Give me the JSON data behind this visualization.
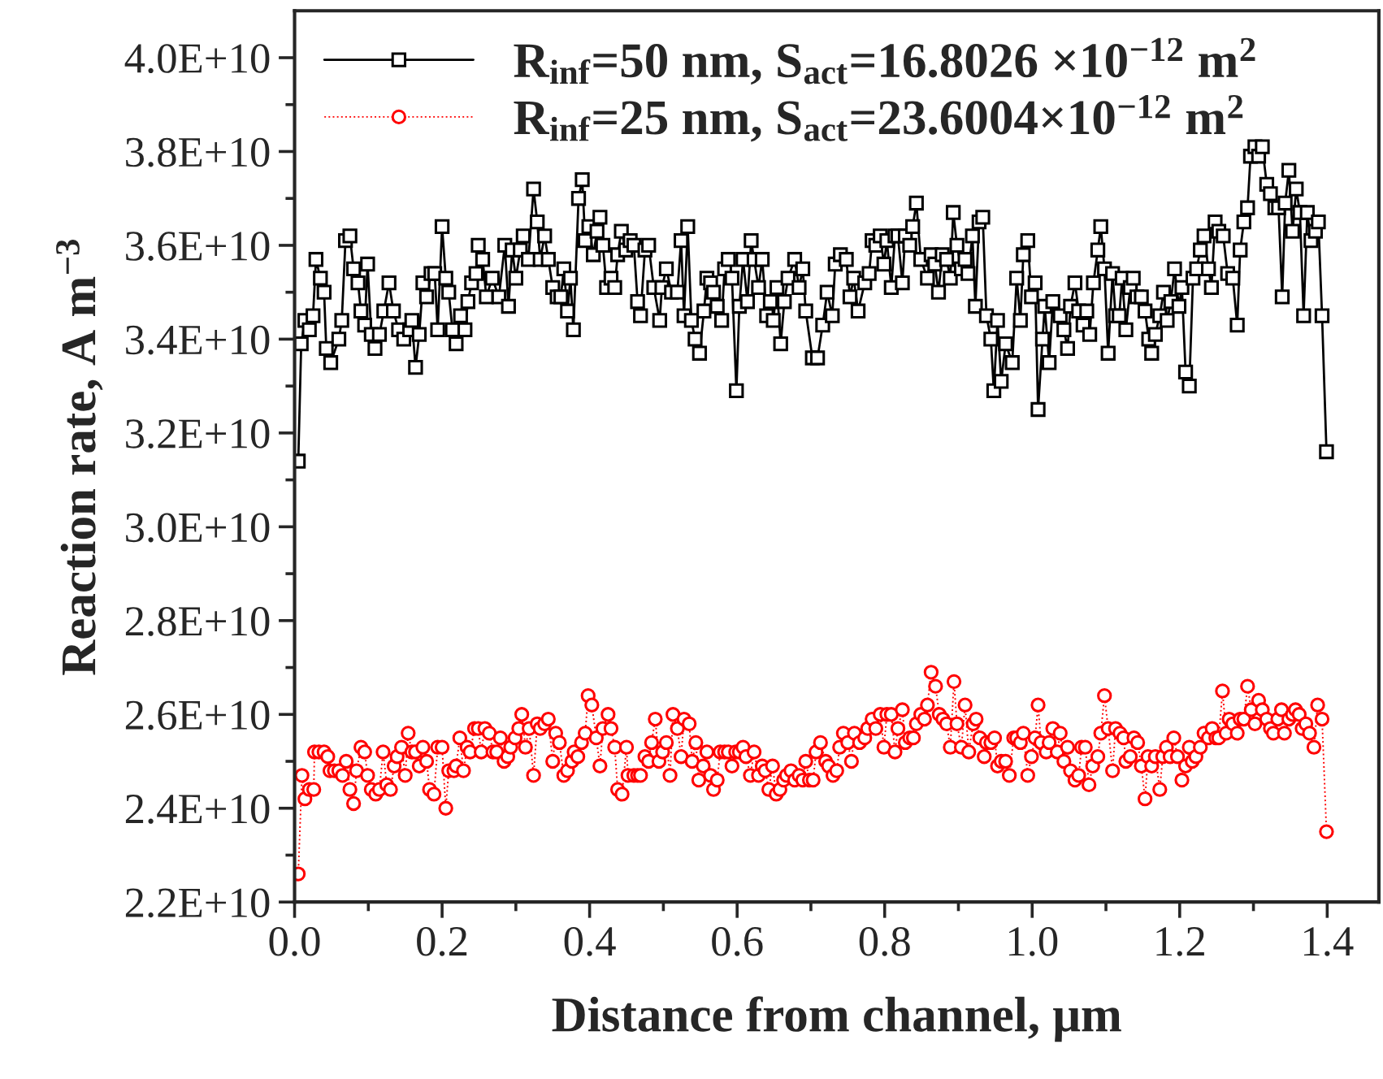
{
  "chart_data": {
    "type": "line",
    "xlabel": "Distance from channel, μm",
    "ylabel": "Reaction rate, A m$^{−3}$",
    "xlim": [
      0,
      1.47
    ],
    "ylim": [
      22000000000.0,
      41000000000.0
    ],
    "xticks": [
      {
        "value": 0,
        "label": "0.0"
      },
      {
        "value": 0.1,
        "label": null
      },
      {
        "value": 0.2,
        "label": "0.2"
      },
      {
        "value": 0.3,
        "label": null
      },
      {
        "value": 0.4,
        "label": "0.4"
      },
      {
        "value": 0.5,
        "label": null
      },
      {
        "value": 0.6,
        "label": "0.6"
      },
      {
        "value": 0.7,
        "label": null
      },
      {
        "value": 0.8,
        "label": "0.8"
      },
      {
        "value": 0.9,
        "label": null
      },
      {
        "value": 1.0,
        "label": "1.0"
      },
      {
        "value": 1.1,
        "label": null
      },
      {
        "value": 1.2,
        "label": "1.2"
      },
      {
        "value": 1.3,
        "label": null
      },
      {
        "value": 1.4,
        "label": "1.4"
      }
    ],
    "yticks": [
      {
        "value": 22000000000.0,
        "label": "2.2E+10"
      },
      {
        "value": 23000000000.0,
        "label": null
      },
      {
        "value": 24000000000.0,
        "label": "2.4E+10"
      },
      {
        "value": 25000000000.0,
        "label": null
      },
      {
        "value": 26000000000.0,
        "label": "2.6E+10"
      },
      {
        "value": 27000000000.0,
        "label": null
      },
      {
        "value": 28000000000.0,
        "label": "2.8E+10"
      },
      {
        "value": 29000000000.0,
        "label": null
      },
      {
        "value": 30000000000.0,
        "label": "3.0E+10"
      },
      {
        "value": 31000000000.0,
        "label": null
      },
      {
        "value": 32000000000.0,
        "label": "3.2E+10"
      },
      {
        "value": 33000000000.0,
        "label": null
      },
      {
        "value": 34000000000.0,
        "label": "3.4E+10"
      },
      {
        "value": 35000000000.0,
        "label": null
      },
      {
        "value": 36000000000.0,
        "label": "3.6E+10"
      },
      {
        "value": 37000000000.0,
        "label": null
      },
      {
        "value": 38000000000.0,
        "label": "3.8E+10"
      },
      {
        "value": 39000000000.0,
        "label": null
      },
      {
        "value": 40000000000.0,
        "label": "4.0E+10"
      }
    ],
    "grid": false,
    "legend": "top left",
    "series": [
      {
        "name": "R$_{inf}$=50 nm, S$_{act}$=16.8026 ×10$^{−12}$ m$^{2}$",
        "color": "#000000",
        "marker": "square",
        "line_style": "solid",
        "x": [
          0.005,
          0.009,
          0.014,
          0.02,
          0.025,
          0.029,
          0.035,
          0.04,
          0.043,
          0.049,
          0.06,
          0.064,
          0.069,
          0.075,
          0.08,
          0.086,
          0.09,
          0.095,
          0.099,
          0.104,
          0.109,
          0.115,
          0.121,
          0.128,
          0.134,
          0.141,
          0.148,
          0.156,
          0.159,
          0.164,
          0.169,
          0.174,
          0.179,
          0.185,
          0.19,
          0.194,
          0.2,
          0.205,
          0.209,
          0.214,
          0.219,
          0.225,
          0.231,
          0.235,
          0.24,
          0.246,
          0.249,
          0.255,
          0.26,
          0.268,
          0.277,
          0.285,
          0.29,
          0.295,
          0.3,
          0.306,
          0.31,
          0.317,
          0.324,
          0.329,
          0.333,
          0.339,
          0.344,
          0.35,
          0.356,
          0.361,
          0.365,
          0.37,
          0.374,
          0.378,
          0.385,
          0.39,
          0.394,
          0.399,
          0.405,
          0.41,
          0.414,
          0.418,
          0.423,
          0.429,
          0.434,
          0.438,
          0.443,
          0.449,
          0.455,
          0.46,
          0.465,
          0.469,
          0.475,
          0.48,
          0.487,
          0.495,
          0.498,
          0.504,
          0.511,
          0.519,
          0.524,
          0.528,
          0.533,
          0.538,
          0.543,
          0.549,
          0.555,
          0.559,
          0.564,
          0.568,
          0.573,
          0.579,
          0.583,
          0.588,
          0.593,
          0.599,
          0.603,
          0.608,
          0.614,
          0.619,
          0.623,
          0.629,
          0.634,
          0.64,
          0.645,
          0.649,
          0.654,
          0.659,
          0.664,
          0.669,
          0.678,
          0.684,
          0.689,
          0.693,
          0.702,
          0.709,
          0.716,
          0.722,
          0.729,
          0.733,
          0.74,
          0.748,
          0.753,
          0.758,
          0.764,
          0.773,
          0.779,
          0.783,
          0.788,
          0.794,
          0.799,
          0.803,
          0.809,
          0.814,
          0.818,
          0.824,
          0.828,
          0.834,
          0.838,
          0.843,
          0.849,
          0.858,
          0.863,
          0.868,
          0.873,
          0.878,
          0.884,
          0.889,
          0.893,
          0.898,
          0.904,
          0.909,
          0.913,
          0.919,
          0.923,
          0.928,
          0.933,
          0.938,
          0.944,
          0.948,
          0.953,
          0.958,
          0.964,
          0.973,
          0.979,
          0.984,
          0.988,
          0.994,
          0.999,
          1.004,
          1.008,
          1.014,
          1.017,
          1.023,
          1.028,
          1.038,
          1.043,
          1.048,
          1.052,
          1.058,
          1.063,
          1.069,
          1.074,
          1.078,
          1.083,
          1.089,
          1.093,
          1.098,
          1.103,
          1.109,
          1.113,
          1.118,
          1.122,
          1.127,
          1.133,
          1.137,
          1.142,
          1.148,
          1.153,
          1.158,
          1.162,
          1.167,
          1.173,
          1.178,
          1.183,
          1.188,
          1.193,
          1.199,
          1.203,
          1.208,
          1.213,
          1.218,
          1.223,
          1.228,
          1.233,
          1.239,
          1.243,
          1.248,
          1.253,
          1.259,
          1.265,
          1.272,
          1.278,
          1.282,
          1.287,
          1.292,
          1.296,
          1.302,
          1.307,
          1.312,
          1.318,
          1.323,
          1.329,
          1.334,
          1.339,
          1.343,
          1.348,
          1.353,
          1.358,
          1.363,
          1.368,
          1.373,
          1.378,
          1.384,
          1.388,
          1.393,
          1.399
        ],
        "values": [
          31400000000.0,
          33900000000.0,
          34400000000.0,
          34200000000.0,
          34500000000.0,
          35700000000.0,
          35300000000.0,
          35000000000.0,
          33800000000.0,
          33500000000.0,
          34000000000.0,
          34400000000.0,
          36100000000.0,
          36200000000.0,
          35500000000.0,
          35200000000.0,
          34600000000.0,
          34300000000.0,
          35600000000.0,
          34100000000.0,
          33800000000.0,
          34100000000.0,
          34600000000.0,
          35200000000.0,
          34600000000.0,
          34200000000.0,
          34000000000.0,
          34200000000.0,
          34400000000.0,
          33400000000.0,
          34100000000.0,
          35200000000.0,
          34900000000.0,
          35400000000.0,
          35400000000.0,
          34200000000.0,
          36400000000.0,
          35300000000.0,
          35000000000.0,
          34200000000.0,
          33900000000.0,
          34500000000.0,
          34200000000.0,
          34800000000.0,
          35200000000.0,
          35400000000.0,
          36000000000.0,
          35700000000.0,
          34900000000.0,
          35300000000.0,
          34900000000.0,
          36000000000.0,
          34700000000.0,
          35900000000.0,
          35300000000.0,
          35900000000.0,
          36200000000.0,
          35700000000.0,
          37200000000.0,
          36500000000.0,
          35700000000.0,
          36200000000.0,
          35700000000.0,
          35100000000.0,
          34900000000.0,
          34900000000.0,
          35500000000.0,
          34600000000.0,
          35300000000.0,
          34200000000.0,
          37000000000.0,
          37400000000.0,
          36100000000.0,
          36400000000.0,
          35800000000.0,
          36300000000.0,
          36600000000.0,
          36000000000.0,
          35100000000.0,
          35300000000.0,
          35100000000.0,
          35800000000.0,
          36300000000.0,
          35900000000.0,
          36100000000.0,
          36000000000.0,
          34800000000.0,
          34500000000.0,
          35900000000.0,
          36000000000.0,
          35100000000.0,
          34400000000.0,
          35100000000.0,
          35500000000.0,
          35000000000.0,
          35000000000.0,
          36100000000.0,
          34500000000.0,
          36400000000.0,
          34400000000.0,
          34000000000.0,
          33700000000.0,
          34600000000.0,
          35300000000.0,
          35200000000.0,
          35000000000.0,
          34700000000.0,
          34400000000.0,
          35500000000.0,
          35700000000.0,
          35300000000.0,
          32900000000.0,
          34700000000.0,
          35700000000.0,
          34800000000.0,
          36100000000.0,
          35700000000.0,
          35100000000.0,
          35700000000.0,
          34500000000.0,
          34800000000.0,
          34400000000.0,
          35100000000.0,
          33900000000.0,
          34800000000.0,
          35300000000.0,
          35700000000.0,
          35100000000.0,
          35500000000.0,
          34600000000.0,
          33600000000.0,
          33600000000.0,
          34300000000.0,
          35000000000.0,
          34500000000.0,
          35600000000.0,
          35800000000.0,
          35700000000.0,
          34900000000.0,
          35300000000.0,
          34600000000.0,
          35200000000.0,
          35400000000.0,
          36100000000.0,
          36000000000.0,
          36200000000.0,
          35600000000.0,
          36100000000.0,
          35100000000.0,
          36200000000.0,
          36200000000.0,
          35200000000.0,
          36200000000.0,
          36000000000.0,
          36400000000.0,
          36900000000.0,
          35700000000.0,
          35300000000.0,
          35800000000.0,
          35600000000.0,
          35000000000.0,
          35800000000.0,
          35700000000.0,
          35300000000.0,
          36700000000.0,
          36000000000.0,
          35500000000.0,
          35700000000.0,
          35400000000.0,
          36200000000.0,
          34700000000.0,
          36500000000.0,
          36600000000.0,
          34500000000.0,
          34000000000.0,
          32900000000.0,
          34400000000.0,
          33100000000.0,
          33900000000.0,
          33500000000.0,
          35300000000.0,
          34400000000.0,
          35800000000.0,
          36100000000.0,
          34900000000.0,
          35200000000.0,
          32500000000.0,
          34000000000.0,
          34700000000.0,
          33500000000.0,
          34800000000.0,
          34500000000.0,
          34200000000.0,
          33800000000.0,
          34700000000.0,
          35200000000.0,
          34600000000.0,
          34300000000.0,
          34600000000.0,
          34100000000.0,
          35200000000.0,
          35900000000.0,
          36400000000.0,
          35500000000.0,
          33700000000.0,
          35400000000.0,
          34500000000.0,
          34500000000.0,
          35300000000.0,
          34200000000.0,
          35100000000.0,
          35300000000.0,
          34900000000.0,
          34900000000.0,
          34600000000.0,
          34000000000.0,
          33700000000.0,
          34100000000.0,
          34500000000.0,
          35000000000.0,
          34400000000.0,
          34800000000.0,
          35500000000.0,
          34700000000.0,
          35100000000.0,
          33300000000.0,
          33000000000.0,
          35300000000.0,
          35500000000.0,
          35900000000.0,
          36200000000.0,
          35500000000.0,
          35100000000.0,
          36500000000.0,
          36300000000.0,
          36200000000.0,
          35400000000.0,
          35300000000.0,
          34300000000.0,
          35900000000.0,
          36500000000.0,
          36800000000.0,
          37900000000.0,
          38100000000.0,
          37900000000.0,
          38100000000.0,
          37300000000.0,
          37100000000.0,
          36800000000.0,
          36800000000.0,
          34900000000.0,
          36900000000.0,
          37600000000.0,
          36300000000.0,
          37200000000.0,
          36700000000.0,
          34500000000.0,
          36700000000.0,
          36100000000.0,
          36300000000.0,
          36500000000.0,
          34500000000.0,
          31600000000.0
        ]
      },
      {
        "name": "R$_{inf}$=25 nm, S$_{act}$=23.6004×10$^{−12}$ m$^{2}$",
        "color": "#ff0000",
        "marker": "circle",
        "line_style": "dotted",
        "x": [
          0.005,
          0.01,
          0.014,
          0.02,
          0.026,
          0.027,
          0.033,
          0.04,
          0.045,
          0.048,
          0.054,
          0.06,
          0.065,
          0.07,
          0.075,
          0.08,
          0.084,
          0.09,
          0.095,
          0.099,
          0.104,
          0.11,
          0.115,
          0.12,
          0.125,
          0.13,
          0.135,
          0.139,
          0.145,
          0.15,
          0.154,
          0.159,
          0.164,
          0.169,
          0.174,
          0.179,
          0.183,
          0.189,
          0.194,
          0.2,
          0.205,
          0.209,
          0.216,
          0.219,
          0.224,
          0.229,
          0.234,
          0.238,
          0.244,
          0.249,
          0.253,
          0.258,
          0.264,
          0.269,
          0.274,
          0.279,
          0.284,
          0.289,
          0.293,
          0.299,
          0.304,
          0.308,
          0.313,
          0.318,
          0.324,
          0.329,
          0.333,
          0.339,
          0.344,
          0.35,
          0.354,
          0.359,
          0.365,
          0.37,
          0.376,
          0.379,
          0.384,
          0.389,
          0.394,
          0.398,
          0.403,
          0.409,
          0.414,
          0.418,
          0.425,
          0.429,
          0.434,
          0.438,
          0.444,
          0.45,
          0.452,
          0.46,
          0.465,
          0.469,
          0.475,
          0.48,
          0.484,
          0.489,
          0.494,
          0.499,
          0.504,
          0.509,
          0.513,
          0.519,
          0.524,
          0.528,
          0.535,
          0.539,
          0.544,
          0.548,
          0.554,
          0.559,
          0.564,
          0.568,
          0.573,
          0.577,
          0.583,
          0.588,
          0.593,
          0.598,
          0.603,
          0.608,
          0.612,
          0.618,
          0.623,
          0.629,
          0.634,
          0.638,
          0.643,
          0.648,
          0.653,
          0.658,
          0.663,
          0.667,
          0.673,
          0.678,
          0.684,
          0.689,
          0.693,
          0.698,
          0.703,
          0.707,
          0.713,
          0.72,
          0.724,
          0.73,
          0.735,
          0.739,
          0.744,
          0.75,
          0.755,
          0.759,
          0.766,
          0.773,
          0.777,
          0.783,
          0.788,
          0.794,
          0.799,
          0.803,
          0.809,
          0.814,
          0.818,
          0.824,
          0.828,
          0.834,
          0.839,
          0.843,
          0.849,
          0.854,
          0.858,
          0.863,
          0.869,
          0.874,
          0.879,
          0.884,
          0.889,
          0.894,
          0.898,
          0.904,
          0.909,
          0.914,
          0.92,
          0.924,
          0.929,
          0.935,
          0.938,
          0.944,
          0.949,
          0.953,
          0.958,
          0.964,
          0.969,
          0.975,
          0.979,
          0.984,
          0.988,
          0.994,
          0.999,
          1.004,
          1.008,
          1.012,
          1.019,
          1.023,
          1.028,
          1.034,
          1.038,
          1.043,
          1.048,
          1.052,
          1.058,
          1.063,
          1.067,
          1.072,
          1.077,
          1.082,
          1.089,
          1.093,
          1.098,
          1.103,
          1.109,
          1.113,
          1.119,
          1.124,
          1.127,
          1.133,
          1.138,
          1.143,
          1.148,
          1.153,
          1.157,
          1.162,
          1.167,
          1.173,
          1.177,
          1.182,
          1.187,
          1.192,
          1.197,
          1.203,
          1.208,
          1.213,
          1.217,
          1.222,
          1.228,
          1.233,
          1.239,
          1.244,
          1.249,
          1.253,
          1.258,
          1.263,
          1.267,
          1.272,
          1.278,
          1.282,
          1.287,
          1.292,
          1.297,
          1.302,
          1.307,
          1.312,
          1.318,
          1.323,
          1.327,
          1.333,
          1.338,
          1.342,
          1.348,
          1.353,
          1.357,
          1.362,
          1.366,
          1.371,
          1.376,
          1.382,
          1.387,
          1.393,
          1.399
        ],
        "values": [
          22600000000.0,
          24700000000.0,
          24200000000.0,
          24400000000.0,
          24400000000.0,
          25200000000.0,
          25200000000.0,
          25200000000.0,
          25100000000.0,
          24800000000.0,
          24800000000.0,
          24800000000.0,
          24700000000.0,
          25000000000.0,
          24400000000.0,
          24100000000.0,
          24800000000.0,
          25300000000.0,
          25200000000.0,
          24700000000.0,
          24400000000.0,
          24300000000.0,
          24400000000.0,
          25200000000.0,
          24500000000.0,
          24400000000.0,
          24900000000.0,
          25100000000.0,
          25300000000.0,
          24700000000.0,
          25600000000.0,
          25200000000.0,
          25200000000.0,
          24900000000.0,
          25300000000.0,
          25000000000.0,
          24400000000.0,
          24300000000.0,
          25300000000.0,
          25300000000.0,
          24000000000.0,
          24800000000.0,
          24800000000.0,
          24900000000.0,
          25500000000.0,
          24800000000.0,
          25300000000.0,
          25200000000.0,
          25700000000.0,
          25700000000.0,
          25200000000.0,
          25700000000.0,
          25600000000.0,
          25200000000.0,
          25200000000.0,
          25500000000.0,
          25000000000.0,
          25100000000.0,
          25300000000.0,
          25500000000.0,
          25700000000.0,
          26000000000.0,
          25300000000.0,
          25700000000.0,
          24700000000.0,
          25800000000.0,
          25700000000.0,
          25800000000.0,
          25900000000.0,
          25000000000.0,
          25600000000.0,
          25400000000.0,
          24700000000.0,
          24800000000.0,
          25000000000.0,
          25200000000.0,
          25100000000.0,
          25400000000.0,
          25600000000.0,
          26400000000.0,
          26200000000.0,
          25500000000.0,
          24900000000.0,
          25700000000.0,
          26000000000.0,
          25700000000.0,
          25300000000.0,
          24400000000.0,
          24300000000.0,
          25300000000.0,
          24700000000.0,
          24700000000.0,
          24700000000.0,
          24700000000.0,
          25100000000.0,
          25000000000.0,
          25400000000.0,
          25900000000.0,
          25000000000.0,
          25200000000.0,
          25400000000.0,
          24700000000.0,
          26000000000.0,
          25700000000.0,
          25100000000.0,
          25900000000.0,
          25800000000.0,
          25000000000.0,
          25400000000.0,
          24600000000.0,
          24900000000.0,
          25200000000.0,
          24700000000.0,
          24400000000.0,
          24600000000.0,
          25200000000.0,
          25200000000.0,
          25200000000.0,
          24900000000.0,
          25200000000.0,
          25200000000.0,
          25300000000.0,
          25100000000.0,
          24700000000.0,
          25200000000.0,
          24700000000.0,
          24900000000.0,
          24800000000.0,
          24400000000.0,
          24900000000.0,
          24300000000.0,
          24400000000.0,
          24600000000.0,
          24700000000.0,
          24800000000.0,
          24600000000.0,
          24700000000.0,
          24600000000.0,
          25000000000.0,
          24600000000.0,
          24600000000.0,
          25200000000.0,
          25400000000.0,
          25000000000.0,
          24900000000.0,
          24700000000.0,
          24800000000.0,
          25300000000.0,
          25600000000.0,
          25400000000.0,
          25000000000.0,
          25600000000.0,
          25400000000.0,
          25500000000.0,
          25700000000.0,
          25900000000.0,
          25700000000.0,
          26000000000.0,
          25300000000.0,
          26000000000.0,
          26000000000.0,
          25200000000.0,
          25700000000.0,
          26100000000.0,
          25400000000.0,
          25500000000.0,
          25500000000.0,
          25800000000.0,
          26000000000.0,
          25900000000.0,
          26200000000.0,
          26900000000.0,
          26600000000.0,
          26000000000.0,
          25900000000.0,
          25800000000.0,
          25300000000.0,
          26700000000.0,
          25800000000.0,
          25300000000.0,
          26200000000.0,
          25200000000.0,
          25800000000.0,
          25900000000.0,
          25500000000.0,
          25100000000.0,
          25400000000.0,
          25400000000.0,
          25500000000.0,
          24900000000.0,
          25000000000.0,
          25000000000.0,
          24700000000.0,
          25500000000.0,
          25500000000.0,
          25400000000.0,
          25600000000.0,
          24700000000.0,
          25100000000.0,
          25500000000.0,
          26200000000.0,
          25400000000.0,
          25200000000.0,
          25400000000.0,
          25700000000.0,
          25200000000.0,
          25600000000.0,
          25000000000.0,
          25300000000.0,
          24800000000.0,
          24600000000.0,
          24700000000.0,
          25300000000.0,
          25300000000.0,
          24500000000.0,
          24900000000.0,
          25100000000.0,
          25600000000.0,
          26400000000.0,
          25700000000.0,
          24800000000.0,
          25700000000.0,
          25600000000.0,
          25500000000.0,
          25000000000.0,
          25100000000.0,
          25500000000.0,
          25400000000.0,
          24900000000.0,
          24200000000.0,
          25100000000.0,
          24900000000.0,
          25100000000.0,
          24400000000.0,
          25100000000.0,
          25300000000.0,
          25100000000.0,
          25500000000.0,
          25100000000.0,
          24600000000.0,
          24900000000.0,
          25300000000.0,
          25000000000.0,
          25100000000.0,
          25300000000.0,
          25600000000.0,
          25500000000.0,
          25700000000.0,
          25500000000.0,
          25500000000.0,
          26500000000.0,
          25600000000.0,
          25900000000.0,
          25800000000.0,
          25600000000.0,
          25900000000.0,
          25900000000.0,
          26600000000.0,
          26100000000.0,
          25800000000.0,
          26300000000.0,
          26100000000.0,
          25900000000.0,
          25700000000.0,
          25600000000.0,
          25900000000.0,
          26100000000.0,
          25600000000.0,
          25900000000.0,
          26000000000.0,
          26100000000.0,
          26000000000.0,
          25700000000.0,
          25800000000.0,
          25600000000.0,
          25300000000.0,
          26200000000.0,
          25900000000.0,
          23500000000.0
        ]
      }
    ]
  }
}
